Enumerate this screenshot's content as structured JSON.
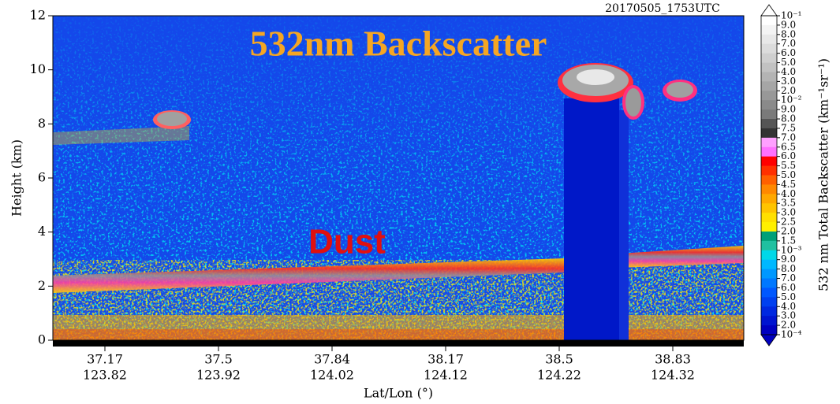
{
  "chart_data": {
    "type": "heatmap",
    "title": "532nm Backscatter",
    "annotation": "Dust",
    "timestamp": "20170505_1753UTC",
    "y_label": "Height (km)",
    "x_label": "Lat/Lon (°)",
    "ylim": [
      0,
      12
    ],
    "yticks": [
      0,
      2,
      4,
      6,
      8,
      10,
      12
    ],
    "categories": [
      "37.17",
      "37.5",
      "37.84",
      "38.17",
      "38.5",
      "38.83"
    ],
    "secondary_categories": [
      "123.82",
      "123.92",
      "124.02",
      "124.12",
      "124.22",
      "124.32"
    ],
    "colorbar": {
      "label": "532 nm Total Backscatter (km⁻¹sr⁻¹)",
      "ticks": [
        "10⁻¹",
        "9.0",
        "8.0",
        "7.0",
        "6.0",
        "5.0",
        "4.0",
        "3.0",
        "2.0",
        "10⁻²",
        "9.0",
        "8.0",
        "7.5",
        "7.0",
        "6.5",
        "6.0",
        "5.5",
        "5.0",
        "4.5",
        "4.0",
        "3.5",
        "3.0",
        "2.5",
        "2.0",
        "1.5",
        "10⁻³",
        "9.0",
        "8.0",
        "7.0",
        "6.0",
        "5.0",
        "4.0",
        "3.0",
        "2.0",
        "10⁻⁴"
      ],
      "colors": [
        "#ffffff",
        "#f4f4f4",
        "#e8e8e8",
        "#dcdcdc",
        "#cfcfcf",
        "#c2c2c2",
        "#b4b4b4",
        "#a6a6a6",
        "#989898",
        "#8a8a8a",
        "#7a7a7a",
        "#555555",
        "#333333",
        "#ffa0ff",
        "#ff70ff",
        "#ff0000",
        "#ff3000",
        "#ff6000",
        "#ff8800",
        "#ffa800",
        "#ffc400",
        "#ffe000",
        "#fff000",
        "#00a078",
        "#20c0a0",
        "#00d8e8",
        "#00b8ff",
        "#0098ff",
        "#0078ff",
        "#0058ff",
        "#0040f0",
        "#0028e0",
        "#0014d0",
        "#0000c0"
      ]
    }
  }
}
